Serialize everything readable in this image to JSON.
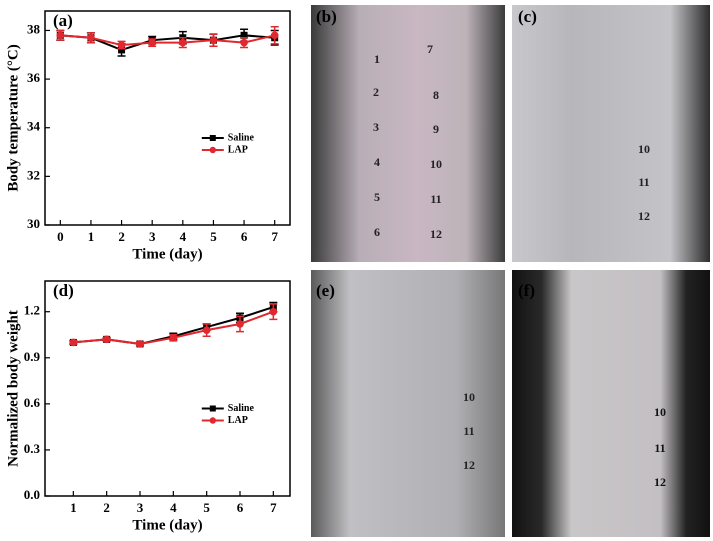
{
  "chart_data": [
    {
      "type": "line",
      "label": "(a)",
      "xlabel": "Time (day)",
      "ylabel": "Body temperature (°C)",
      "x": [
        0,
        1,
        2,
        3,
        4,
        5,
        6,
        7
      ],
      "xlim": [
        -0.5,
        7.5
      ],
      "xticks": [
        0,
        1,
        2,
        3,
        4,
        5,
        6,
        7
      ],
      "ylim": [
        30,
        38.8
      ],
      "yticks": [
        30,
        32,
        34,
        36,
        38
      ],
      "legend": "center right",
      "series": [
        {
          "name": "Saline",
          "color": "#000000",
          "marker": "square",
          "values": [
            37.8,
            37.7,
            37.2,
            37.6,
            37.7,
            37.6,
            37.8,
            37.7
          ],
          "errors": [
            0.2,
            0.2,
            0.25,
            0.15,
            0.25,
            0.25,
            0.25,
            0.3
          ]
        },
        {
          "name": "LAP",
          "color": "#e0282e",
          "marker": "circle",
          "values": [
            37.8,
            37.7,
            37.4,
            37.5,
            37.5,
            37.6,
            37.5,
            37.8
          ],
          "errors": [
            0.2,
            0.2,
            0.15,
            0.15,
            0.2,
            0.25,
            0.2,
            0.35
          ]
        }
      ]
    },
    {
      "type": "line",
      "label": "(d)",
      "xlabel": "Time (day)",
      "ylabel": "Normalized body weight",
      "x": [
        1,
        2,
        3,
        4,
        5,
        6,
        7
      ],
      "xlim": [
        0.15,
        7.5
      ],
      "xticks": [
        1,
        2,
        3,
        4,
        5,
        6,
        7
      ],
      "ylim": [
        0,
        1.4
      ],
      "yticks": [
        {
          "value": 0,
          "label": "0.0"
        },
        0.3,
        0.6,
        0.9,
        1.2
      ],
      "legend": "center right",
      "series": [
        {
          "name": "Saline",
          "color": "#000000",
          "marker": "square",
          "values": [
            1.0,
            1.02,
            0.99,
            1.04,
            1.1,
            1.16,
            1.23
          ],
          "errors": [
            0.01,
            0.01,
            0.01,
            0.02,
            0.02,
            0.03,
            0.03
          ]
        },
        {
          "name": "LAP",
          "color": "#e0282e",
          "marker": "circle",
          "values": [
            1.0,
            1.02,
            0.99,
            1.03,
            1.08,
            1.12,
            1.2
          ],
          "errors": [
            0.01,
            0.01,
            0.01,
            0.02,
            0.04,
            0.05,
            0.05
          ]
        }
      ]
    }
  ],
  "photos": [
    {
      "label": "(b)",
      "marks": [
        "1",
        "2",
        "3",
        "4",
        "5",
        "6",
        "7",
        "8",
        "9",
        "10",
        "11",
        "12"
      ]
    },
    {
      "label": "(c)",
      "marks": [
        "10",
        "11",
        "12"
      ]
    },
    {
      "label": "(e)",
      "marks": [
        "10",
        "11",
        "12"
      ]
    },
    {
      "label": "(f)",
      "marks": [
        "10",
        "11",
        "12"
      ]
    }
  ]
}
